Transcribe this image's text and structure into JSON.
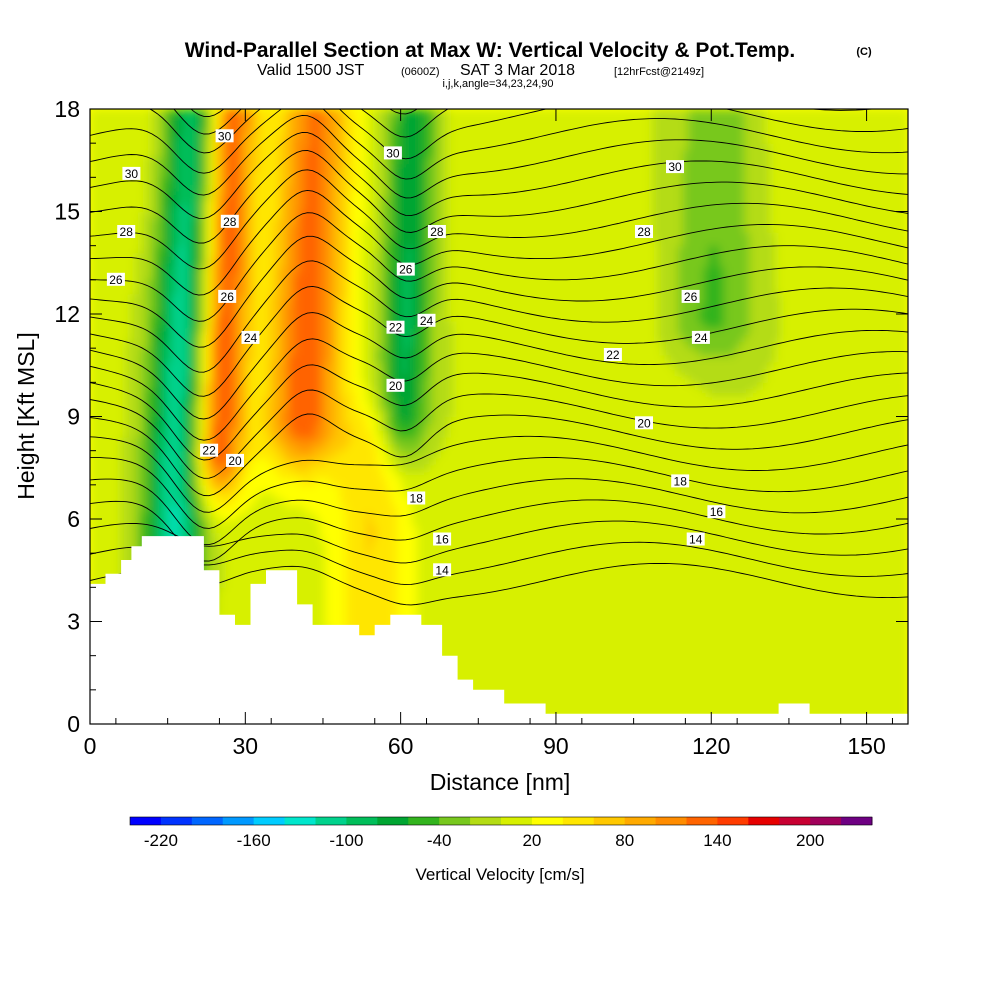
{
  "title": {
    "main": "Wind-Parallel Section at Max W: Vertical Velocity & Pot.Temp.",
    "main_tag": "(C)",
    "valid_1": "Valid 1500 JST",
    "valid_utc": "(0600Z)",
    "valid_2": "SAT 3 Mar 2018",
    "fcst": "[12hrFcst@2149z]",
    "indices": "i,j,k,angle=34,23,24,90"
  },
  "chart_data": {
    "type": "heatmap",
    "xlabel": "Distance [nm]",
    "ylabel": "Height [Kft MSL]",
    "xlim": [
      0,
      158
    ],
    "ylim": [
      0,
      18
    ],
    "x_ticks": [
      0,
      30,
      60,
      90,
      120,
      150
    ],
    "y_ticks": [
      0,
      3,
      6,
      9,
      12,
      15,
      18
    ],
    "colorbar": {
      "label": "Vertical Velocity [cm/s]",
      "tick_labels": [
        "-220",
        "-160",
        "-100",
        "-40",
        "20",
        "80",
        "140",
        "200"
      ],
      "tick_values": [
        -220,
        -160,
        -100,
        -40,
        20,
        80,
        140,
        200
      ],
      "bins": [
        -240,
        -220,
        -200,
        -180,
        -160,
        -140,
        -120,
        -100,
        -80,
        -60,
        -40,
        -20,
        0,
        20,
        40,
        60,
        80,
        100,
        120,
        140,
        160,
        180,
        200,
        220,
        240
      ],
      "colors": [
        "#0000ff",
        "#0033ff",
        "#0066ff",
        "#0099ff",
        "#00ccff",
        "#00e6cc",
        "#00d28c",
        "#00be5a",
        "#00a532",
        "#33b41e",
        "#78c81e",
        "#b4dc14",
        "#d7f000",
        "#ffff00",
        "#ffe600",
        "#ffc800",
        "#ffaa00",
        "#ff8c00",
        "#ff6400",
        "#ff3c00",
        "#e60000",
        "#c80032",
        "#a0005a",
        "#6e0082"
      ]
    },
    "terrain_profile_kft": [
      [
        0,
        4.1
      ],
      [
        3,
        4.1
      ],
      [
        3,
        4.4
      ],
      [
        6,
        4.4
      ],
      [
        6,
        4.8
      ],
      [
        8,
        4.8
      ],
      [
        8,
        5.2
      ],
      [
        10,
        5.2
      ],
      [
        10,
        5.5
      ],
      [
        22,
        5.5
      ],
      [
        22,
        4.5
      ],
      [
        25,
        4.5
      ],
      [
        25,
        3.2
      ],
      [
        28,
        3.2
      ],
      [
        28,
        2.9
      ],
      [
        31,
        2.9
      ],
      [
        31,
        4.1
      ],
      [
        34,
        4.1
      ],
      [
        34,
        4.5
      ],
      [
        40,
        4.5
      ],
      [
        40,
        3.5
      ],
      [
        43,
        3.5
      ],
      [
        43,
        2.9
      ],
      [
        52,
        2.9
      ],
      [
        52,
        2.6
      ],
      [
        55,
        2.6
      ],
      [
        55,
        2.9
      ],
      [
        58,
        2.9
      ],
      [
        58,
        3.2
      ],
      [
        64,
        3.2
      ],
      [
        64,
        2.9
      ],
      [
        68,
        2.9
      ],
      [
        68,
        2.0
      ],
      [
        71,
        2.0
      ],
      [
        71,
        1.3
      ],
      [
        74,
        1.3
      ],
      [
        74,
        1.0
      ],
      [
        80,
        1.0
      ],
      [
        80,
        0.6
      ],
      [
        88,
        0.6
      ],
      [
        88,
        0.3
      ],
      [
        133,
        0.3
      ],
      [
        133,
        0.6
      ],
      [
        139,
        0.6
      ],
      [
        139,
        0.3
      ],
      [
        158,
        0.3
      ],
      [
        158,
        0
      ],
      [
        0,
        0
      ]
    ],
    "w_features": [
      {
        "kind": "updraft",
        "x": 25.5,
        "z_min": 8,
        "z_max": 18,
        "width": 5,
        "peak_cm_s": 150
      },
      {
        "kind": "updraft",
        "x": 42,
        "z_min": 9,
        "z_max": 18,
        "width": 7,
        "peak_cm_s": 120
      },
      {
        "kind": "downdraft",
        "x": 18.5,
        "z_min": 4,
        "z_max": 18,
        "width": 6,
        "peak_cm_s": -130
      },
      {
        "kind": "downdraft",
        "x": 61,
        "z_min": 9,
        "z_max": 18,
        "width": 5,
        "peak_cm_s": -90
      },
      {
        "kind": "downdraft",
        "x": 120,
        "z_min": 12,
        "z_max": 18,
        "width": 9,
        "peak_cm_s": -50
      },
      {
        "kind": "updraft",
        "x": 56,
        "z_min": 3,
        "z_max": 8,
        "width": 7,
        "peak_cm_s": 50
      }
    ],
    "contour_labels_theta_c": [
      {
        "x": 8,
        "z": 16.1,
        "text": "30"
      },
      {
        "x": 7,
        "z": 14.4,
        "text": "28"
      },
      {
        "x": 5,
        "z": 13.0,
        "text": "26"
      },
      {
        "x": 23,
        "z": 8.0,
        "text": "22"
      },
      {
        "x": 28,
        "z": 7.7,
        "text": "20"
      },
      {
        "x": 26,
        "z": 17.2,
        "text": "30"
      },
      {
        "x": 27,
        "z": 14.7,
        "text": "28"
      },
      {
        "x": 26.5,
        "z": 12.5,
        "text": "26"
      },
      {
        "x": 31,
        "z": 11.3,
        "text": "24"
      },
      {
        "x": 58.5,
        "z": 16.7,
        "text": "30"
      },
      {
        "x": 61,
        "z": 13.3,
        "text": "26"
      },
      {
        "x": 59,
        "z": 11.6,
        "text": "22"
      },
      {
        "x": 59,
        "z": 9.9,
        "text": "20"
      },
      {
        "x": 65,
        "z": 11.8,
        "text": "24"
      },
      {
        "x": 67,
        "z": 14.4,
        "text": "28"
      },
      {
        "x": 63,
        "z": 6.6,
        "text": "18"
      },
      {
        "x": 68,
        "z": 5.4,
        "text": "16"
      },
      {
        "x": 68,
        "z": 4.5,
        "text": "14"
      },
      {
        "x": 113,
        "z": 16.3,
        "text": "30"
      },
      {
        "x": 107,
        "z": 14.4,
        "text": "28"
      },
      {
        "x": 116,
        "z": 12.5,
        "text": "26"
      },
      {
        "x": 118,
        "z": 11.3,
        "text": "24"
      },
      {
        "x": 101,
        "z": 10.8,
        "text": "22"
      },
      {
        "x": 107,
        "z": 8.8,
        "text": "20"
      },
      {
        "x": 114,
        "z": 7.1,
        "text": "18"
      },
      {
        "x": 121,
        "z": 6.2,
        "text": "16"
      },
      {
        "x": 117,
        "z": 5.4,
        "text": "14"
      }
    ]
  }
}
